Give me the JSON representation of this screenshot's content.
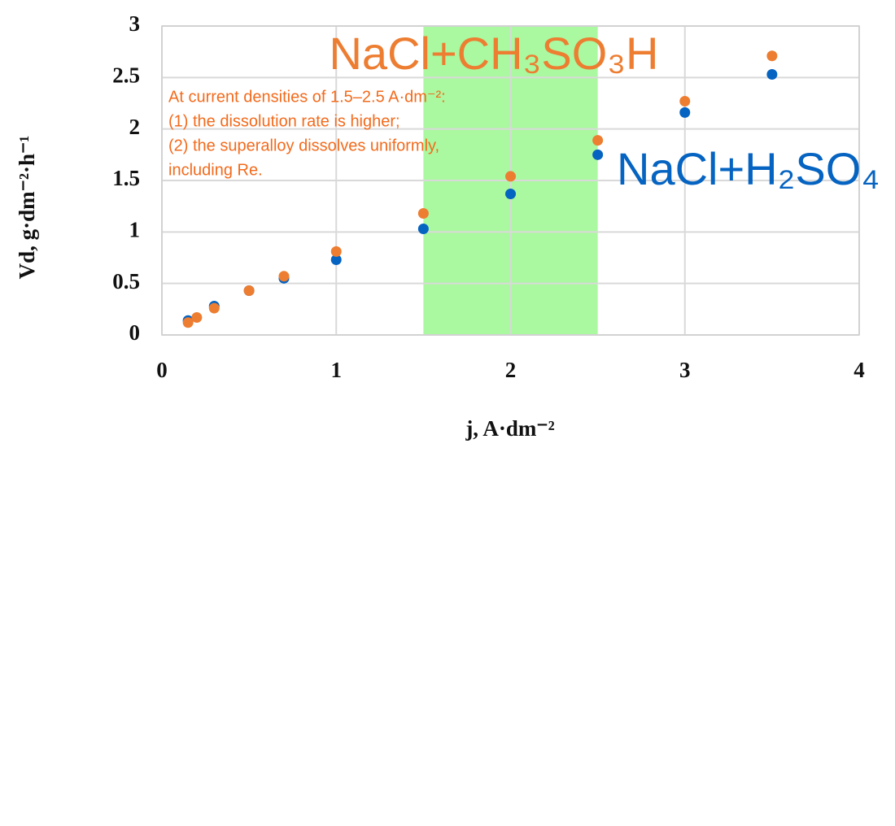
{
  "chart_data": {
    "type": "scatter",
    "xlabel": "j, A·dm⁻²",
    "ylabel": "Vd, g·dm⁻²·h⁻¹",
    "xlim": [
      0,
      4
    ],
    "xticks": [
      0,
      1,
      2,
      3,
      4
    ],
    "ylim": [
      0,
      3
    ],
    "yticks": [
      0,
      0.5,
      1,
      1.5,
      2,
      2.5,
      3
    ],
    "grid": true,
    "highlight_x": [
      1.5,
      2.5
    ],
    "highlight_color": "#8ef57f",
    "annotation": [
      "At current densities of 1.5–2.5 A·dm⁻²:",
      "(1) the dissolution rate is higher;",
      "(2) the superalloy dissolves uniformly,",
      "including Re."
    ],
    "annotation_color": "#f26b1d",
    "series": [
      {
        "name": "NaCl+H₂SO₄",
        "color": "#0563c1",
        "x": [
          0.15,
          0.3,
          0.5,
          0.7,
          1.0,
          1.5,
          2.0,
          2.5,
          3.0,
          3.5
        ],
        "values": [
          0.14,
          0.28,
          0.43,
          0.55,
          0.73,
          1.03,
          1.37,
          1.75,
          2.16,
          2.53
        ]
      },
      {
        "name": "NaCl+CH₃SO₃H",
        "color": "#ed7d31",
        "x": [
          0.15,
          0.2,
          0.3,
          0.5,
          0.7,
          1.0,
          1.5,
          2.0,
          2.5,
          3.0,
          3.5
        ],
        "values": [
          0.12,
          0.17,
          0.26,
          0.43,
          0.57,
          0.81,
          1.18,
          1.54,
          1.89,
          2.27,
          2.71
        ]
      }
    ]
  }
}
